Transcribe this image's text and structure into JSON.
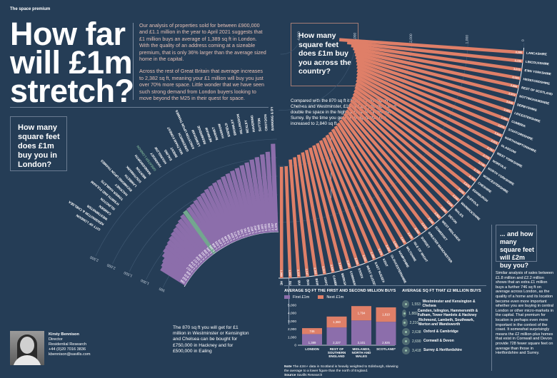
{
  "kicker": "The space premium",
  "title": "How far will £1m stretch?",
  "intro": [
    "Our analysis of properties sold for between £900,000 and £1.1 million in the year to April 2021 suggests that £1 million buys an average of 1,389 sq ft in London. With the quality of an address coming at a sizeable premium, that is only 36% larger than the average sized home in the capital.",
    "Across the rest of Great Britain that average increases to 2,382 sq ft, meaning your £1 million will buy you just over 70% more space. Little wonder that we have seen such strong demand from London buyers looking to move beyond the M25 in their quest for space."
  ],
  "london_question": "How many square feet does £1m buy you in London?",
  "country_question": "How many square feet does £1m buy you across the country?",
  "compare_text": "Compared with the 870 sq ft it buys in Kensington & Chelsea and Westminster, £1m will get you more than double the space in the highly desirable Elmbridge, Surrey. By the time you get to Harrogate that has increased to 2,840 sq ft",
  "london_caption": "The 870 sq ft you will get for £1 million in Westminster or Kensington and Chelsea can be bought for £750,000 in Hackney and for £500,000 in Ealing",
  "contact": {
    "name": "Kirsty Bennison",
    "role": "Director",
    "dept": "Residential Research",
    "phone": "+44 (0)20 7016 3836",
    "email": "kbennison@savills.com"
  },
  "two_million_question": "... and how many square feet will £2m buy you?",
  "two_million_text": "Similar analysis of sales between £1.8 million and £2.2 million shows that an extra £1 million buys a further 746 sq ft on average across London, as the quality of a home and its location become even more important whether you are buying in central London or other micro-markets in the capital. That premium for location is perhaps even more important in the context of the coast. It somewhat surprisingly means the £2 million-plus homes that exist in Cornwall and Devon provide 728 fewer square feet on average than those in Hertfordshire and Surrey.",
  "colors": {
    "background": "#253d56",
    "london_bar": "#8c6eab",
    "london_highlight": "#73a78f",
    "country_bar": "#df7f68",
    "country_highlight": "#73a78f"
  },
  "chart_data": [
    {
      "type": "bar",
      "title": "How many square feet does £1m buy you in London?",
      "layout_style": "radial",
      "highlight": "GREATER LONDON",
      "axis_ticks": [
        500,
        1000,
        1500,
        2000,
        2500
      ],
      "ylim": [
        0,
        2500
      ],
      "categories": [
        "CITY OF LONDON",
        "KENSINGTON & CHELSEA",
        "WESTMINSTER",
        "CAMDEN",
        "ISLINGTON",
        "H'SMITH AND FULHAM",
        "TOWER HAMLETS",
        "HACKNEY",
        "RICHMOND UPON THAMES",
        "LAMBETH",
        "SOUTHWARK",
        "MERTON",
        "WANDSWORTH",
        "GREATER LONDON",
        "HARINGEY",
        "HOUNSLOW",
        "EALING",
        "BRENT",
        "WALTHAM FOREST",
        "GREENWICH",
        "KINGSTON UPON THAMES",
        "LEWISHAM",
        "REDBRIDGE",
        "NEWHAM",
        "BARNET",
        "HARROW",
        "ENFIELD",
        "BROMLEY",
        "HILLINGDON",
        "BEXLEY",
        "HAVERING",
        "SUTTON",
        "CROYDON",
        "BARKING & D'HAM"
      ],
      "values": [
        786,
        832,
        870,
        956,
        1017,
        1038,
        1074,
        1117,
        1160,
        1198,
        1241,
        1288,
        1345,
        1389,
        1408,
        1433,
        1475,
        1516,
        1548,
        1598,
        1634,
        1671,
        1702,
        1745,
        1781,
        1819,
        1857,
        1902,
        1948,
        2003,
        2051,
        2108,
        2167,
        2376
      ]
    },
    {
      "type": "bar",
      "title": "How many square feet does £1m buy you across the country?",
      "layout_style": "radial",
      "highlight": "GREATER LONDON",
      "axis_ticks": [
        0,
        1000,
        2000,
        3000,
        4000
      ],
      "ylim": [
        0,
        4000
      ],
      "categories": [
        "GREATER LONDON",
        "HERTFORDSHIRE",
        "SURREY",
        "BUCKINGHAMSHIRE",
        "BOURNEMOUTH",
        "BRISTOL",
        "OXFORDSHIRE",
        "CAMBRIDGESHIRE",
        "BERKSHIRE",
        "CORNWALL",
        "ESSEX",
        "WEST SUSSEX",
        "EAST SUSSEX",
        "KENT",
        "GLOUCESTERSHIRE",
        "HAMPSHIRE",
        "WILTSHIRE",
        "ISLE OF WIGHT",
        "DORSET",
        "GREATER MANCHESTER",
        "SOMERSET",
        "WEST MIDLANDS",
        "DEVON",
        "WALES",
        "WARWICKSHIRE",
        "SUFFOLK",
        "EDINBURGH",
        "CHESHIRE",
        "WORCESTERSHIRE",
        "NORTH YORKSHIRE",
        "NORFOLK",
        "WEST YORKSHIRE",
        "GLASGOW",
        "NORTHAMPTONSHIRE",
        "STAFFORDSHIRE",
        "CUMBRIA",
        "LEICESTERSHIRE",
        "DERBYSHIRE",
        "NOTTINGHAMSHIRE",
        "REST OF SCOTLAND",
        "HEREFORDSHIRE",
        "E'RN YORKSHIRE",
        "LINCOLNSHIRE",
        "LANCASHIRE"
      ],
      "values": [
        1389,
        1989,
        1997,
        2113,
        2147,
        2182,
        2212,
        2240,
        2263,
        2287,
        2305,
        2331,
        2356,
        2378,
        2402,
        2425,
        2447,
        2470,
        2492,
        2515,
        2540,
        2562,
        2585,
        2608,
        2632,
        2655,
        2678,
        2702,
        2725,
        2749,
        2773,
        2797,
        2821,
        2845,
        2870,
        2895,
        2921,
        2946,
        2972,
        2998,
        3030,
        3072,
        3150,
        3295
      ]
    },
    {
      "type": "bar",
      "stacked": true,
      "title": "AVERAGE SQ FT THE FIRST AND SECOND MILLION BUYS",
      "categories": [
        "LONDON",
        "REST OF SOUTHERN ENGLAND",
        "MIDLANDS, NORTH AND WALES",
        "SCOTLAND*"
      ],
      "series": [
        {
          "name": "First £1m",
          "values": [
            1389,
            2227,
            3101,
            2926
          ]
        },
        {
          "name": "Next £1m",
          "values": [
            746,
            1360,
            1794,
            1810
          ]
        }
      ],
      "yticks": [
        0,
        1000,
        2000,
        3000,
        4000,
        5000
      ],
      "ylim": [
        0,
        5000
      ],
      "note_label": "Note",
      "note": "The £2m+ data in Scotland is heavily weighted to Edinburgh, skewing the average to a lower figure than the north of England.",
      "source_label": "Source",
      "source": "Savills Research"
    }
  ],
  "two_million_list": {
    "title": "AVERAGE SQ FT THAT £2 MILLION BUYS",
    "items": [
      {
        "value": "1,553",
        "label": "Westminster and Kensington & Chelsea"
      },
      {
        "value": "1,882",
        "label": "Camden, Islington, Hammersmith & Fulham, Tower Hamlets & Hackney"
      },
      {
        "value": "2,210",
        "label": "Richmond, Lambeth, Southwark, Merton and Wandsworth"
      },
      {
        "value": "2,638",
        "label": "Oxford & Cambridge"
      },
      {
        "value": "2,690",
        "label": "Cornwall & Devon"
      },
      {
        "value": "3,418",
        "label": "Surrey & Hertfordshire"
      }
    ]
  }
}
